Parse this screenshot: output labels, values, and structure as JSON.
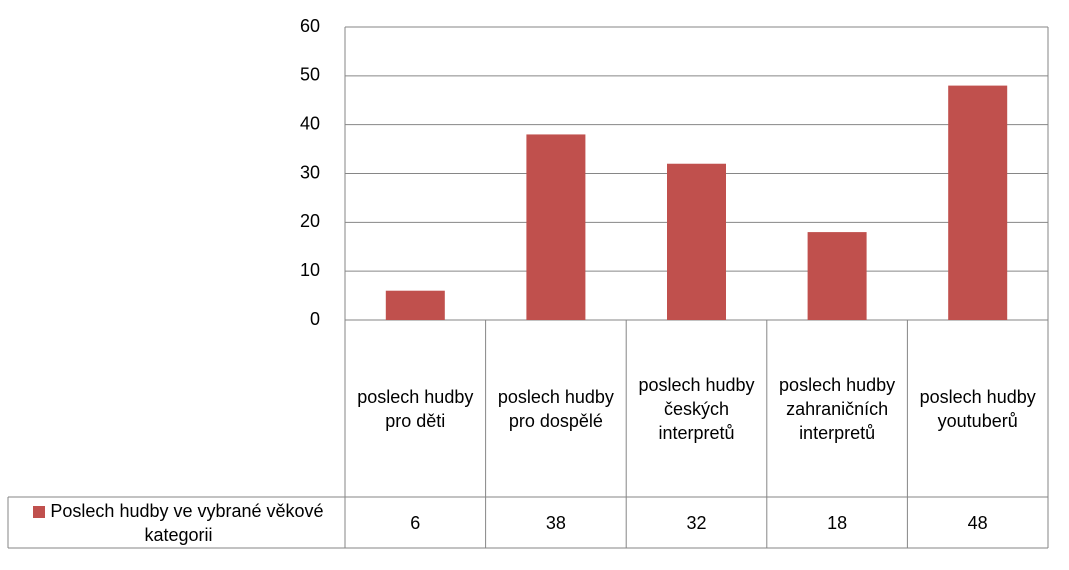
{
  "chart_data": {
    "type": "bar",
    "categories": [
      "poslech hudby pro děti",
      "poslech hudby pro dospělé",
      "poslech hudby českých interpretů",
      "poslech hudby zahraničních interpretů",
      "poslech hudby youtuberů"
    ],
    "series": [
      {
        "name": "Poslech hudby ve vybrané věkové kategorii",
        "color": "#c0504d",
        "values": [
          6,
          38,
          32,
          18,
          48
        ]
      }
    ],
    "ylim": [
      0,
      60
    ],
    "yticks": [
      0,
      10,
      20,
      30,
      40,
      50,
      60
    ],
    "grid": true,
    "data_table": true
  }
}
